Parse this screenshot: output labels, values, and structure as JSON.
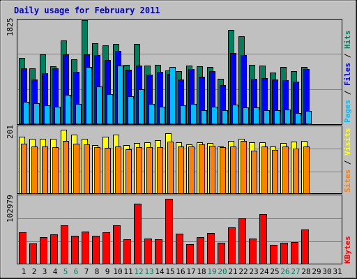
{
  "colors": {
    "background": "#c0c0c0",
    "title": "#0000c0",
    "hits": "#00805c",
    "files": "#0000ff",
    "pages": "#00c0ff",
    "visits": "#ffff00",
    "sites": "#ff8000",
    "kbytes": "#ff0000",
    "weekend_label": "#00805c"
  },
  "chart_data": {
    "type": "bar",
    "title": "Daily usage for February 2011",
    "categories": [
      "1",
      "2",
      "3",
      "4",
      "5",
      "6",
      "7",
      "8",
      "9",
      "10",
      "11",
      "12",
      "13",
      "14",
      "15",
      "16",
      "17",
      "18",
      "19",
      "20",
      "21",
      "22",
      "23",
      "24",
      "25",
      "26",
      "27",
      "28",
      "29",
      "30",
      "31"
    ],
    "weekend_days": [
      "5",
      "6",
      "12",
      "13",
      "19",
      "20",
      "26",
      "27"
    ],
    "panels": [
      {
        "id": "requests",
        "ymax_label": "1825",
        "ylim": [
          0,
          1825
        ],
        "right_labels": [
          {
            "text": "Pages",
            "color": "#00c0ff"
          },
          {
            "text": " / ",
            "color": "#000000"
          },
          {
            "text": "Files",
            "color": "#0000ff"
          },
          {
            "text": " / ",
            "color": "#000000"
          },
          {
            "text": "Hits",
            "color": "#00805c"
          }
        ],
        "series": [
          {
            "name": "Hits",
            "color": "#00805c",
            "values": [
              1165,
              980,
              1225,
              1010,
              1465,
              1140,
              1825,
              1420,
              1385,
              1410,
              1040,
              1410,
              1020,
              1040,
              940,
              920,
              1020,
              1010,
              1000,
              785,
              1655,
              1545,
              1035,
              1020,
              900,
              1000,
              930,
              1000,
              0,
              0,
              0
            ]
          },
          {
            "name": "Files",
            "color": "#0000ff",
            "values": [
              980,
              780,
              890,
              980,
              1225,
              910,
              1220,
              1205,
              1125,
              1285,
              950,
              1020,
              860,
              910,
              880,
              780,
              960,
              830,
              930,
              680,
              1240,
              1210,
              790,
              805,
              780,
              760,
              735,
              960,
              0,
              0,
              0
            ]
          },
          {
            "name": "Pages",
            "color": "#00c0ff",
            "values": [
              380,
              360,
              320,
              300,
              500,
              340,
              1000,
              650,
              520,
              1020,
              480,
              610,
              350,
              300,
              1000,
              320,
              350,
              240,
              300,
              230,
              330,
              280,
              280,
              230,
              230,
              250,
              190,
              220,
              0,
              0,
              0
            ]
          }
        ]
      },
      {
        "id": "visitors",
        "ymax_label": "201",
        "ylim": [
          0,
          210
        ],
        "right_labels": [
          {
            "text": "Sites",
            "color": "#ff8000"
          },
          {
            "text": " / ",
            "color": "#000000"
          },
          {
            "text": "Visits",
            "color": "#ffff00"
          }
        ],
        "series": [
          {
            "name": "Visits",
            "color": "#ffff00",
            "values": [
              180,
              172,
              172,
              172,
              201,
              186,
              172,
              153,
              180,
              185,
              153,
              160,
              162,
              169,
              189,
              161,
              154,
              161,
              159,
              148,
              166,
              173,
              162,
              161,
              149,
              159,
              163,
              165,
              0,
              0,
              0
            ]
          },
          {
            "name": "Sites",
            "color": "#ff8000",
            "values": [
              157,
              147,
              147,
              146,
              165,
              157,
              155,
              145,
              144,
              148,
              140,
              146,
              145,
              145,
              163,
              148,
              149,
              155,
              151,
              146,
              147,
              166,
              134,
              147,
              138,
              149,
              141,
              147,
              0,
              0,
              0
            ]
          }
        ]
      },
      {
        "id": "kbytes",
        "ymax_label": "102979",
        "ylim": [
          0,
          108000
        ],
        "right_labels": [
          {
            "text": "KBytes",
            "color": "#ff0000"
          }
        ],
        "series": [
          {
            "name": "KBytes",
            "color": "#ff0000",
            "values": [
              50000,
              32000,
              42000,
              47000,
              61000,
              44000,
              51000,
              45000,
              50000,
              61000,
              39000,
              96000,
              40000,
              39000,
              103000,
              48000,
              31000,
              42000,
              49000,
              33000,
              58000,
              72000,
              40000,
              79000,
              30000,
              33000,
              34000,
              54000,
              0,
              0,
              0
            ]
          }
        ]
      }
    ]
  }
}
